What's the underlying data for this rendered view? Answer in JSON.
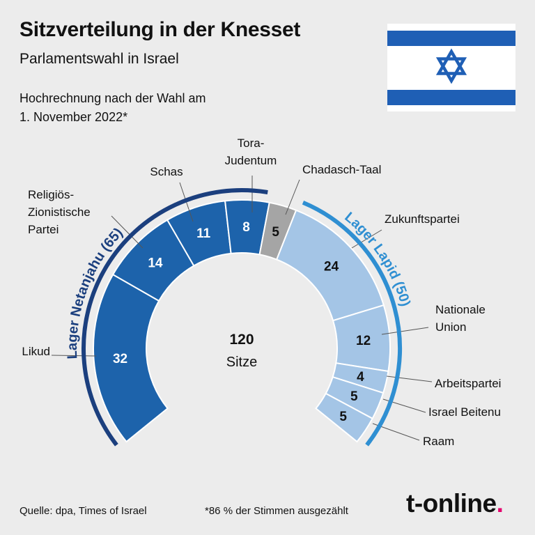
{
  "header": {
    "title": "Sitzverteilung in der Knesset",
    "subtitle": "Parlamentswahl in Israel",
    "note_line1": "Hochrechnung nach der Wahl am",
    "note_line2": "1. November 2022*"
  },
  "flag": {
    "stripe_color": "#1f5fb5",
    "field_color": "#ffffff",
    "emblem": "star-of-david-icon"
  },
  "footer": {
    "source": "Quelle: dpa, Times of Israel",
    "footnote": "*86 % der Stimmen ausgezählt",
    "logo_text": "t-online",
    "logo_dot": ".",
    "logo_dot_color": "#e4006d"
  },
  "chart_data": {
    "type": "semicircle-donut",
    "total_seats": 120,
    "center_number": "120",
    "center_label": "Sitze",
    "parties": [
      {
        "name": "Likud",
        "seats": 32,
        "color": "#1d63ab",
        "bloc": "netanjahu",
        "label_lines": [
          "Likud"
        ]
      },
      {
        "name": "Religiös-Zionistische Partei",
        "seats": 14,
        "color": "#1d63ab",
        "bloc": "netanjahu",
        "label_lines": [
          "Religiös-",
          "Zionistische",
          "Partei"
        ]
      },
      {
        "name": "Schas",
        "seats": 11,
        "color": "#1d63ab",
        "bloc": "netanjahu",
        "label_lines": [
          "Schas"
        ]
      },
      {
        "name": "Tora-Judentum",
        "seats": 8,
        "color": "#1d63ab",
        "bloc": "netanjahu",
        "label_lines": [
          "Tora-",
          "Judentum"
        ]
      },
      {
        "name": "Chadasch-Taal",
        "seats": 5,
        "color": "#a5a5a5",
        "bloc": "none",
        "label_lines": [
          "Chadasch-Taal"
        ]
      },
      {
        "name": "Zukunftspartei",
        "seats": 24,
        "color": "#a4c5e6",
        "bloc": "lapid",
        "label_lines": [
          "Zukunftspartei"
        ]
      },
      {
        "name": "Nationale Union",
        "seats": 12,
        "color": "#a4c5e6",
        "bloc": "lapid",
        "label_lines": [
          "Nationale",
          "Union"
        ]
      },
      {
        "name": "Arbeitspartei",
        "seats": 4,
        "color": "#a4c5e6",
        "bloc": "lapid",
        "label_lines": [
          "Arbeitspartei"
        ]
      },
      {
        "name": "Israel Beitenu",
        "seats": 5,
        "color": "#a4c5e6",
        "bloc": "lapid",
        "label_lines": [
          "Israel Beitenu"
        ]
      },
      {
        "name": "Raam",
        "seats": 5,
        "color": "#a4c5e6",
        "bloc": "lapid",
        "label_lines": [
          "Raam"
        ]
      }
    ],
    "blocs": [
      {
        "id": "netanjahu",
        "label": "Lager Netanjahu (65)",
        "color": "#1b3f7e"
      },
      {
        "id": "lapid",
        "label": "Lager Lapid (50)",
        "color": "#2f8fd2"
      }
    ]
  }
}
